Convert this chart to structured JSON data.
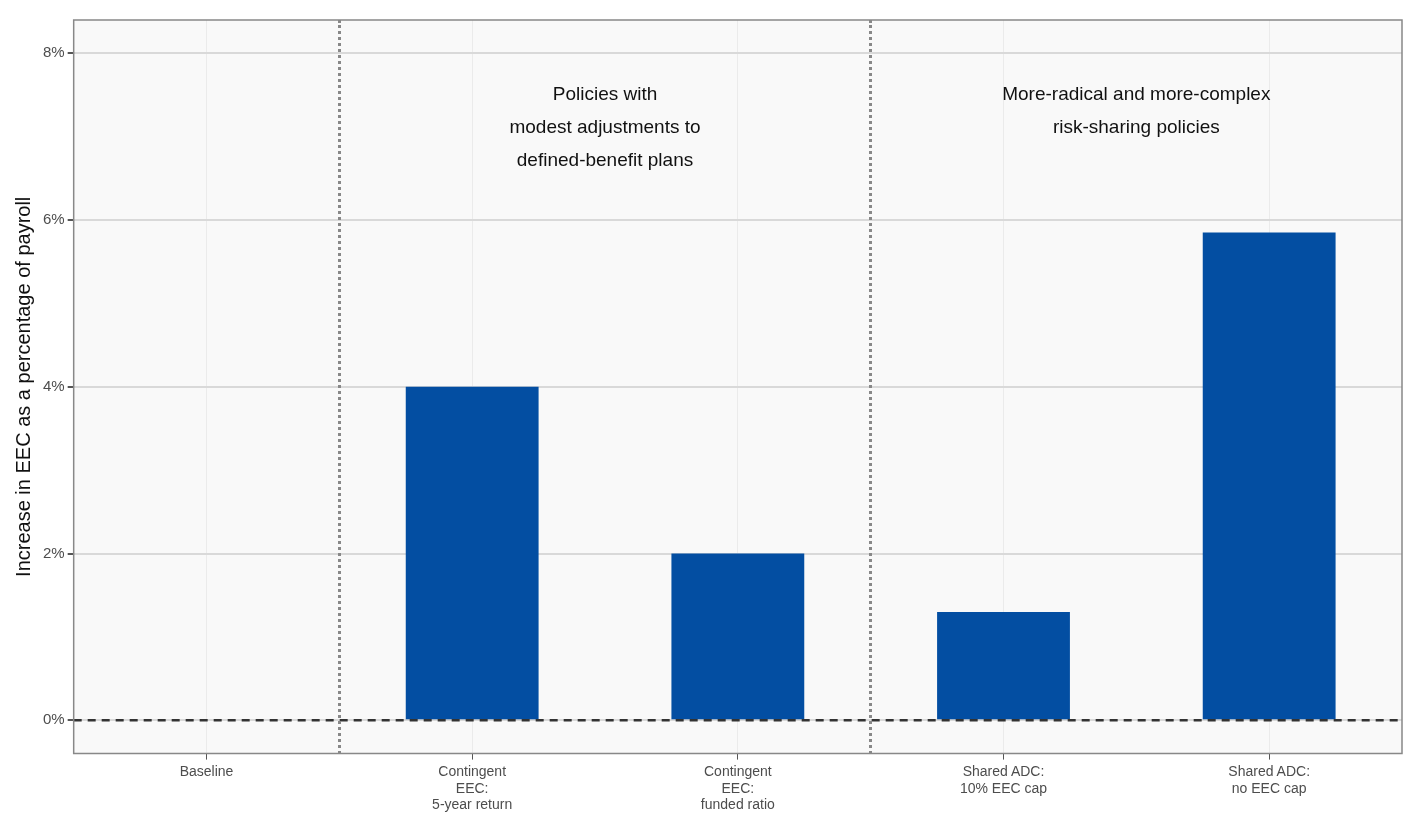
{
  "chart_data": {
    "type": "bar",
    "ylabel": "Increase in EEC as a percentage of payroll",
    "categories": [
      "Baseline",
      "Contingent\nEEC:\n5-year return",
      "Contingent\nEEC:\nfunded ratio",
      "Shared ADC:\n10% EEC cap",
      "Shared ADC:\nno EEC cap"
    ],
    "values": [
      0,
      4.0,
      2.0,
      1.3,
      5.85
    ],
    "color": "#034ea2",
    "ylim": [
      -0.4,
      8.4
    ],
    "yticks": [
      {
        "value": 0,
        "label": "0%"
      },
      {
        "value": 2,
        "label": "2%"
      },
      {
        "value": 4,
        "label": "4%"
      },
      {
        "value": 6,
        "label": "6%"
      },
      {
        "value": 8,
        "label": "8%"
      }
    ],
    "grid": true,
    "ref_lines": [
      {
        "axis": "y",
        "value": 0,
        "color": "#333333",
        "line_style": "dashed"
      }
    ],
    "annotations": [
      "Policies with\nmodest adjustments to\ndefined-benefit plans",
      "More-radical and more-complex\nrisk-sharing policies"
    ]
  }
}
